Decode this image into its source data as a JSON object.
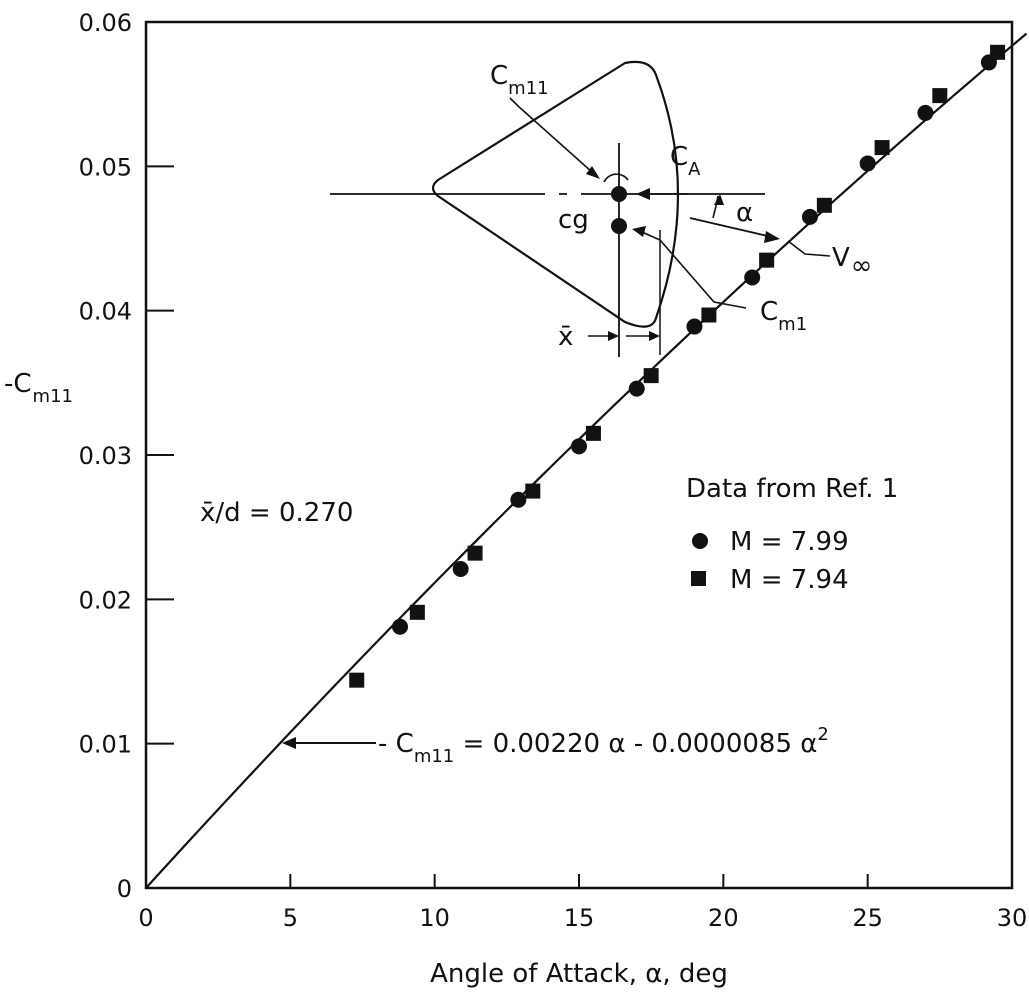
{
  "chart_data": {
    "type": "scatter",
    "xlabel": "Angle of Attack, α, deg",
    "ylabel": "-C",
    "ylabel_sub": "m11",
    "xlim": [
      0,
      30
    ],
    "ylim": [
      0,
      0.06
    ],
    "x_ticks": [
      "0",
      "5",
      "10",
      "15",
      "20",
      "25",
      "30"
    ],
    "y_ticks": [
      "0",
      "0.01",
      "0.02",
      "0.03",
      "0.04",
      "0.05",
      "0.06"
    ],
    "grid": false,
    "legend": {
      "title": "Data from Ref. 1",
      "position": "center-right",
      "entries": [
        "M = 7.99",
        "M = 7.94"
      ]
    },
    "series": [
      {
        "name": "M = 7.99",
        "marker": "circle",
        "x": [
          8.8,
          10.9,
          12.9,
          15.0,
          17.0,
          19.0,
          21.0,
          23.0,
          25.0,
          27.0,
          29.2
        ],
        "y": [
          0.0181,
          0.0221,
          0.0269,
          0.0306,
          0.0346,
          0.0389,
          0.0423,
          0.0465,
          0.0502,
          0.0537,
          0.0572
        ]
      },
      {
        "name": "M = 7.94",
        "marker": "square",
        "x": [
          7.3,
          9.4,
          11.4,
          13.4,
          15.5,
          17.5,
          19.5,
          21.5,
          23.5,
          25.5,
          27.5,
          29.5
        ],
        "y": [
          0.0144,
          0.0191,
          0.0232,
          0.0275,
          0.0315,
          0.0355,
          0.0397,
          0.0435,
          0.0473,
          0.0513,
          0.0549,
          0.0579
        ]
      }
    ],
    "fit_curve": {
      "a": 0.0022,
      "b": 8.5e-06
    },
    "annotations": {
      "ratio": "x̄/d = 0.270",
      "equation": "- C",
      "equation_sub": "m11",
      "equation_rest": " = 0.00220 α - 0.0000085 α",
      "equation_sup": "2"
    },
    "inset": {
      "cm11": "C",
      "cm11_sub": "m11",
      "ca": "C",
      "ca_sub": "A",
      "alpha": "α",
      "cg": "cg",
      "vinf": "V",
      "vinf_sub": "∞",
      "cm1": "C",
      "cm1_sub": "m1",
      "xbar": "x̄"
    }
  }
}
